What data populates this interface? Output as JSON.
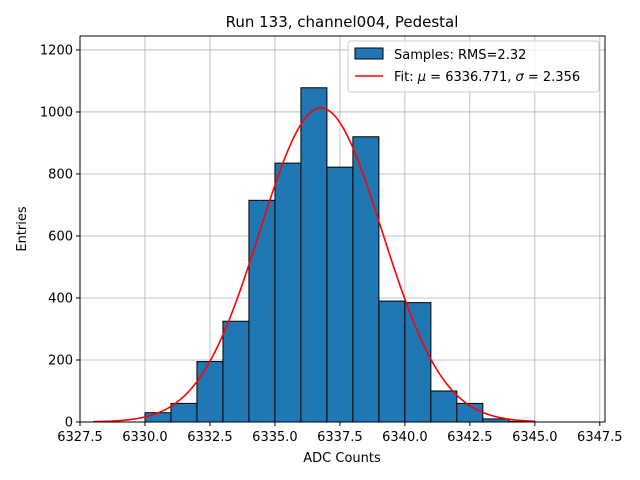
{
  "chart_data": {
    "type": "bar",
    "title": "Run 133, channel004, Pedestal",
    "xlabel": "ADC Counts",
    "ylabel": "Entries",
    "xlim": [
      6327.5,
      6347.7
    ],
    "ylim": [
      0,
      1245
    ],
    "grid": true,
    "legend_position": "top-right",
    "x_ticks": [
      6327.5,
      6330.0,
      6332.5,
      6335.0,
      6337.5,
      6340.0,
      6342.5,
      6345.0,
      6347.5
    ],
    "x_tick_labels": [
      "6327.5",
      "6330.0",
      "6332.5",
      "6335.0",
      "6337.5",
      "6340.0",
      "6342.5",
      "6345.0",
      "6347.5"
    ],
    "y_ticks": [
      0,
      200,
      400,
      600,
      800,
      1000,
      1200
    ],
    "y_tick_labels": [
      "0",
      "200",
      "400",
      "600",
      "800",
      "1000",
      "1200"
    ],
    "histogram": {
      "name": "Samples: RMS=2.32",
      "color": "#1f77b4",
      "edge_color": "#000000",
      "bin_edges": [
        6330,
        6331,
        6332,
        6333,
        6334,
        6335,
        6336,
        6337,
        6338,
        6339,
        6340,
        6341,
        6342,
        6343,
        6344,
        6345
      ],
      "counts": [
        30,
        60,
        195,
        325,
        715,
        835,
        1078,
        822,
        920,
        390,
        385,
        100,
        60,
        10,
        2
      ]
    },
    "fit": {
      "name": "Fit: μ = 6336.771, σ = 2.356",
      "legend_prefix": "Fit: ",
      "mu_label": "μ",
      "mu_text": " = 6336.771, ",
      "sigma_label": "σ",
      "sigma_text": " = 2.356",
      "color": "#ff0000",
      "mu": 6336.771,
      "sigma": 2.356,
      "amplitude": 1013,
      "x_range": [
        6328.0,
        6345.0
      ]
    }
  }
}
